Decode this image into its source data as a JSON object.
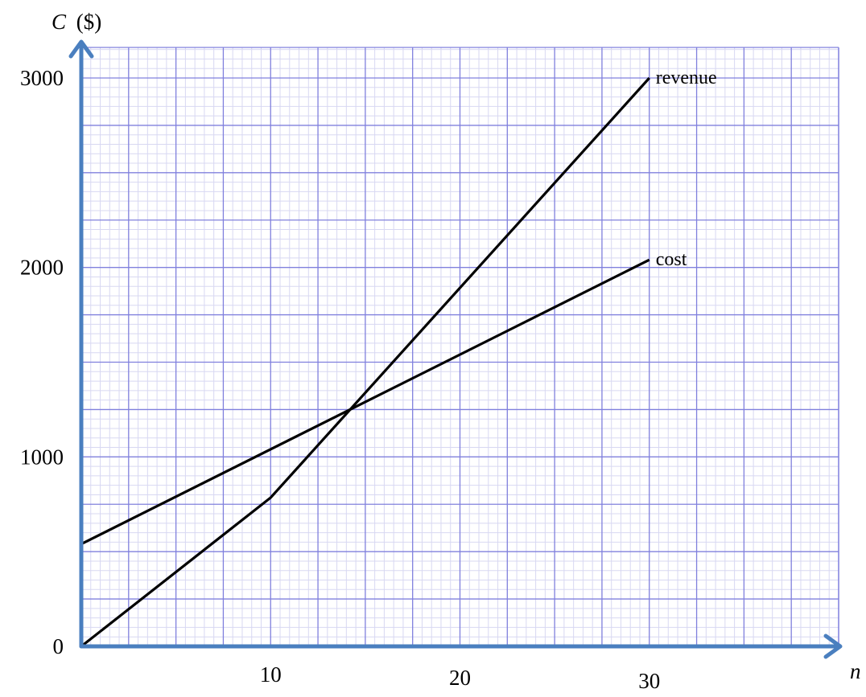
{
  "chart_data": {
    "type": "line",
    "ylabel_var": "C",
    "ylabel_unit": "($)",
    "xlabel": "n",
    "xlim": [
      0,
      40
    ],
    "ylim": [
      0,
      3000
    ],
    "grid": true,
    "x_ticks": [
      {
        "value": 10,
        "label": "10"
      },
      {
        "value": 20,
        "label": "20"
      },
      {
        "value": 30,
        "label": "30"
      }
    ],
    "y_ticks": [
      {
        "value": 0,
        "label": "0"
      },
      {
        "value": 1000,
        "label": "1000"
      },
      {
        "value": 2000,
        "label": "2000"
      },
      {
        "value": 3000,
        "label": "3000"
      }
    ],
    "series": [
      {
        "name": "revenue",
        "points": [
          [
            0,
            0
          ],
          [
            10,
            785
          ],
          [
            30,
            3000
          ]
        ]
      },
      {
        "name": "cost",
        "points": [
          [
            0,
            540
          ],
          [
            30,
            2040
          ]
        ]
      }
    ],
    "colors": {
      "grid_major": "#8080dd",
      "grid_minor": "#d8d8f2",
      "axis": "#4a7fbf",
      "line": "#000000"
    }
  }
}
